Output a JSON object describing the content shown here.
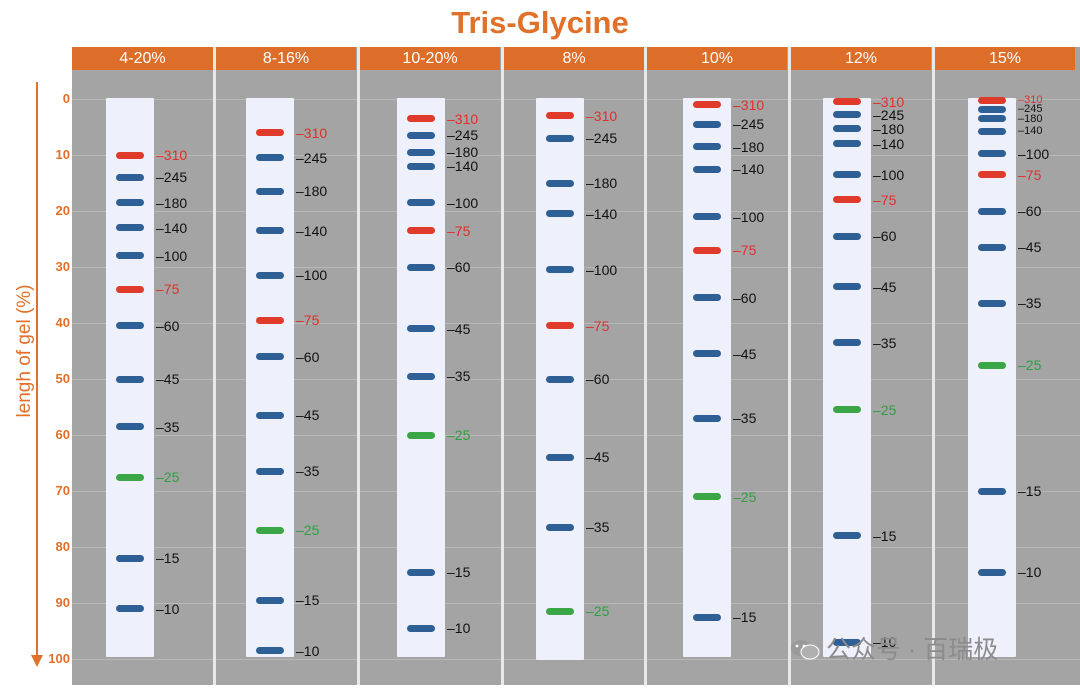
{
  "title": "Tris-Glycine",
  "y_axis": {
    "label": "lengh of gel (%)",
    "ticks": [
      "0",
      "10",
      "20",
      "30",
      "40",
      "50",
      "60",
      "70",
      "80",
      "90",
      "100"
    ],
    "axis_color": "#e0702a"
  },
  "colors": {
    "header": "#dd6e2a",
    "panel": "#a4a4a4",
    "strip": "#eef1fb",
    "band_blue": "#2e5f95",
    "band_red": "#e03a2a",
    "band_green": "#3aa645",
    "label_dark": "#111111",
    "label_red": "#e0302a",
    "label_green": "#2fa040"
  },
  "watermark": {
    "text": "公众号 · 百瑞极",
    "icon": "wechat-icon"
  },
  "gels": [
    {
      "name": "4-20%",
      "bands": [
        {
          "label": "310",
          "y": 10,
          "color": "red"
        },
        {
          "label": "245",
          "y": 14,
          "color": "blue"
        },
        {
          "label": "180",
          "y": 18.5,
          "color": "blue"
        },
        {
          "label": "140",
          "y": 23,
          "color": "blue"
        },
        {
          "label": "100",
          "y": 28,
          "color": "blue"
        },
        {
          "label": "75",
          "y": 34,
          "color": "red"
        },
        {
          "label": "60",
          "y": 40.5,
          "color": "blue"
        },
        {
          "label": "45",
          "y": 50,
          "color": "blue"
        },
        {
          "label": "35",
          "y": 58.5,
          "color": "blue"
        },
        {
          "label": "25",
          "y": 67.5,
          "color": "green"
        },
        {
          "label": "15",
          "y": 82,
          "color": "blue"
        },
        {
          "label": "10",
          "y": 91,
          "color": "blue"
        }
      ]
    },
    {
      "name": "8-16%",
      "bands": [
        {
          "label": "310",
          "y": 6,
          "color": "red"
        },
        {
          "label": "245",
          "y": 10.5,
          "color": "blue"
        },
        {
          "label": "180",
          "y": 16.5,
          "color": "blue"
        },
        {
          "label": "140",
          "y": 23.5,
          "color": "blue"
        },
        {
          "label": "100",
          "y": 31.5,
          "color": "blue"
        },
        {
          "label": "75",
          "y": 39.5,
          "color": "red"
        },
        {
          "label": "60",
          "y": 46,
          "color": "blue"
        },
        {
          "label": "45",
          "y": 56.5,
          "color": "blue"
        },
        {
          "label": "35",
          "y": 66.5,
          "color": "blue"
        },
        {
          "label": "25",
          "y": 77,
          "color": "green"
        },
        {
          "label": "15",
          "y": 89.5,
          "color": "blue"
        },
        {
          "label": "10",
          "y": 98.5,
          "color": "blue"
        }
      ]
    },
    {
      "name": "10-20%",
      "bands": [
        {
          "label": "310",
          "y": 3.5,
          "color": "red"
        },
        {
          "label": "245",
          "y": 6.5,
          "color": "blue"
        },
        {
          "label": "180",
          "y": 9.5,
          "color": "blue"
        },
        {
          "label": "140",
          "y": 12,
          "color": "blue"
        },
        {
          "label": "100",
          "y": 18.5,
          "color": "blue"
        },
        {
          "label": "75",
          "y": 23.5,
          "color": "red"
        },
        {
          "label": "60",
          "y": 30,
          "color": "blue"
        },
        {
          "label": "45",
          "y": 41,
          "color": "blue"
        },
        {
          "label": "35",
          "y": 49.5,
          "color": "blue"
        },
        {
          "label": "25",
          "y": 60,
          "color": "green"
        },
        {
          "label": "15",
          "y": 84.5,
          "color": "blue"
        },
        {
          "label": "10",
          "y": 94.5,
          "color": "blue"
        }
      ]
    },
    {
      "name": "8%",
      "bands": [
        {
          "label": "310",
          "y": 3,
          "color": "red"
        },
        {
          "label": "245",
          "y": 7,
          "color": "blue"
        },
        {
          "label": "180",
          "y": 15,
          "color": "blue"
        },
        {
          "label": "140",
          "y": 20.5,
          "color": "blue"
        },
        {
          "label": "100",
          "y": 30.5,
          "color": "blue"
        },
        {
          "label": "75",
          "y": 40.5,
          "color": "red"
        },
        {
          "label": "60",
          "y": 50,
          "color": "blue"
        },
        {
          "label": "45",
          "y": 64,
          "color": "blue"
        },
        {
          "label": "35",
          "y": 76.5,
          "color": "blue"
        },
        {
          "label": "25",
          "y": 91.5,
          "color": "green"
        }
      ]
    },
    {
      "name": "10%",
      "bands": [
        {
          "label": "310",
          "y": 1,
          "color": "red"
        },
        {
          "label": "245",
          "y": 4.5,
          "color": "blue"
        },
        {
          "label": "180",
          "y": 8.5,
          "color": "blue"
        },
        {
          "label": "140",
          "y": 12.5,
          "color": "blue"
        },
        {
          "label": "100",
          "y": 21,
          "color": "blue"
        },
        {
          "label": "75",
          "y": 27,
          "color": "red"
        },
        {
          "label": "60",
          "y": 35.5,
          "color": "blue"
        },
        {
          "label": "45",
          "y": 45.5,
          "color": "blue"
        },
        {
          "label": "35",
          "y": 57,
          "color": "blue"
        },
        {
          "label": "25",
          "y": 71,
          "color": "green"
        },
        {
          "label": "15",
          "y": 92.5,
          "color": "blue"
        }
      ]
    },
    {
      "name": "12%",
      "bands": [
        {
          "label": "310",
          "y": 0.5,
          "color": "red"
        },
        {
          "label": "245",
          "y": 2.8,
          "color": "blue"
        },
        {
          "label": "180",
          "y": 5.3,
          "color": "blue"
        },
        {
          "label": "140",
          "y": 8,
          "color": "blue"
        },
        {
          "label": "100",
          "y": 13.5,
          "color": "blue"
        },
        {
          "label": "75",
          "y": 18,
          "color": "red"
        },
        {
          "label": "60",
          "y": 24.5,
          "color": "blue"
        },
        {
          "label": "45",
          "y": 33.5,
          "color": "blue"
        },
        {
          "label": "35",
          "y": 43.5,
          "color": "blue"
        },
        {
          "label": "25",
          "y": 55.5,
          "color": "green"
        },
        {
          "label": "15",
          "y": 78,
          "color": "blue"
        },
        {
          "label": "10",
          "y": 97,
          "color": "blue"
        }
      ]
    },
    {
      "name": "15%",
      "bands": [
        {
          "label": "310",
          "y": 0.2,
          "color": "red",
          "small": true
        },
        {
          "label": "245",
          "y": 1.8,
          "color": "blue",
          "small": true
        },
        {
          "label": "180",
          "y": 3.5,
          "color": "blue",
          "small": true
        },
        {
          "label": "140",
          "y": 5.8,
          "color": "blue",
          "small": true
        },
        {
          "label": "100",
          "y": 9.8,
          "color": "blue"
        },
        {
          "label": "75",
          "y": 13.5,
          "color": "red"
        },
        {
          "label": "60",
          "y": 20,
          "color": "blue"
        },
        {
          "label": "45",
          "y": 26.5,
          "color": "blue"
        },
        {
          "label": "35",
          "y": 36.5,
          "color": "blue"
        },
        {
          "label": "25",
          "y": 47.5,
          "color": "green"
        },
        {
          "label": "15",
          "y": 70,
          "color": "blue"
        },
        {
          "label": "10",
          "y": 84.5,
          "color": "blue"
        }
      ]
    }
  ]
}
